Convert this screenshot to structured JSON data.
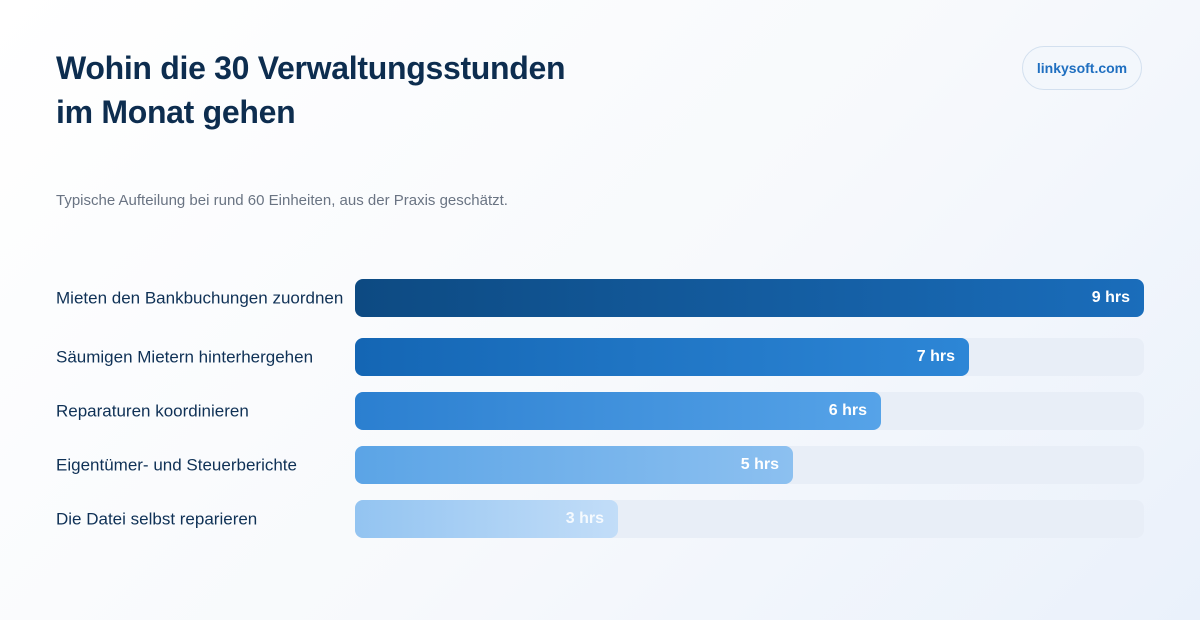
{
  "badge": "linkysoft.com",
  "chart_data": {
    "type": "bar",
    "orientation": "horizontal",
    "title": "Wohin die 30 Verwaltungsstunden im Monat gehen",
    "subtitle": "Typische Aufteilung bei rund 60 Einheiten, aus der Praxis geschätzt.",
    "unit": "hrs",
    "xlim": [
      0,
      9
    ],
    "categories": [
      "Mieten den Bankbuchungen zuordnen",
      "Säumigen Mietern hinterhergehen",
      "Reparaturen koordinieren",
      "Eigentümer- und Steuerberichte",
      "Die Datei selbst reparieren"
    ],
    "values": [
      9,
      7,
      6,
      5,
      3
    ],
    "value_labels": [
      "9 hrs",
      "7 hrs",
      "6 hrs",
      "5 hrs",
      "3 hrs"
    ],
    "bar_gradients": [
      [
        "#0d4a82",
        "#1a6dbb"
      ],
      [
        "#1466b4",
        "#2d86d6"
      ],
      [
        "#2b7fd0",
        "#56a3e8"
      ],
      [
        "#5ba4e6",
        "#8cc0f0"
      ],
      [
        "#93c4f1",
        "#c2ddf8"
      ]
    ]
  }
}
